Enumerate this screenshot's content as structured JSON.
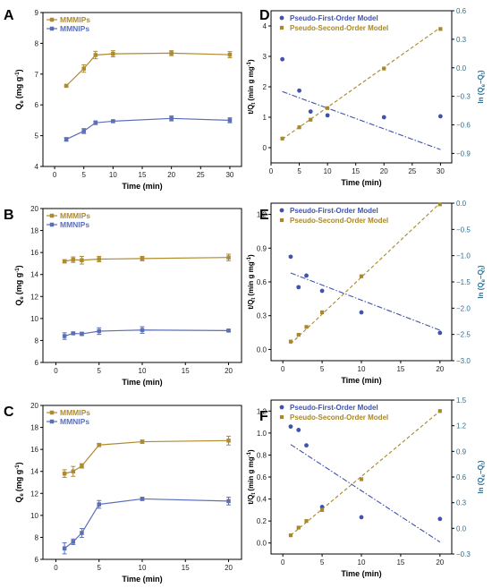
{
  "chart_data": [
    {
      "panel": "A",
      "type": "line",
      "xlabel": "Time (min)",
      "ylabel": "Q",
      "ylabel_sub": "e",
      "ylabel_unit": "(mg g",
      "ylabel_sup": "-1",
      "ylabel_close": ")",
      "xlim": [
        -2,
        32
      ],
      "ylim": [
        4,
        9
      ],
      "xticks": [
        0,
        5,
        10,
        15,
        20,
        25,
        30
      ],
      "yticks": [
        4,
        5,
        6,
        7,
        8,
        9
      ],
      "legend": "top-left",
      "series": [
        {
          "name": "MMMIPs",
          "color": "#b08a2e",
          "marker": "square",
          "x": [
            2,
            5,
            7,
            10,
            20,
            30
          ],
          "y": [
            6.62,
            7.18,
            7.62,
            7.66,
            7.68,
            7.63
          ],
          "err": [
            0.03,
            0.12,
            0.12,
            0.1,
            0.08,
            0.1
          ]
        },
        {
          "name": "MMNIPs",
          "color": "#5b6fb8",
          "marker": "square",
          "x": [
            2,
            5,
            7,
            10,
            20,
            30
          ],
          "y": [
            4.88,
            5.15,
            5.42,
            5.47,
            5.56,
            5.5
          ],
          "err": [
            0.06,
            0.08,
            0.06,
            0.04,
            0.08,
            0.08
          ]
        }
      ]
    },
    {
      "panel": "B",
      "type": "line",
      "xlabel": "Time (min)",
      "ylabel": "Q",
      "ylabel_sub": "e",
      "ylabel_unit": "(mg g",
      "ylabel_sup": "-1",
      "ylabel_close": ")",
      "xlim": [
        -1.5,
        21.5
      ],
      "ylim": [
        6,
        20
      ],
      "xticks": [
        0,
        5,
        10,
        15,
        20
      ],
      "yticks": [
        6,
        8,
        10,
        12,
        14,
        16,
        18,
        20
      ],
      "legend": "top-left",
      "series": [
        {
          "name": "MMMIPs",
          "color": "#b08a2e",
          "marker": "square",
          "x": [
            1,
            2,
            3,
            5,
            10,
            20
          ],
          "y": [
            15.2,
            15.35,
            15.3,
            15.4,
            15.45,
            15.55
          ],
          "err": [
            0.15,
            0.25,
            0.35,
            0.25,
            0.2,
            0.3
          ]
        },
        {
          "name": "MMNIPs",
          "color": "#5b6fb8",
          "marker": "square",
          "x": [
            1,
            2,
            3,
            5,
            10,
            20
          ],
          "y": [
            8.4,
            8.65,
            8.6,
            8.85,
            8.95,
            8.9
          ],
          "err": [
            0.3,
            0.1,
            0.15,
            0.3,
            0.3,
            0.1
          ]
        }
      ]
    },
    {
      "panel": "C",
      "type": "line",
      "xlabel": "Time (min)",
      "ylabel": "Q",
      "ylabel_sub": "e",
      "ylabel_unit": "(mg g",
      "ylabel_sup": "-1",
      "ylabel_close": ")",
      "xlim": [
        -1.5,
        21.5
      ],
      "ylim": [
        6,
        20
      ],
      "xticks": [
        0,
        5,
        10,
        15,
        20
      ],
      "yticks": [
        6,
        8,
        10,
        12,
        14,
        16,
        18,
        20
      ],
      "legend": "top-left",
      "series": [
        {
          "name": "MMMIPs",
          "color": "#b08a2e",
          "marker": "square",
          "x": [
            1,
            2,
            3,
            5,
            10,
            20
          ],
          "y": [
            13.8,
            14.0,
            14.5,
            16.4,
            16.7,
            16.8
          ],
          "err": [
            0.35,
            0.45,
            0.2,
            0.15,
            0.15,
            0.4
          ]
        },
        {
          "name": "MMNIPs",
          "color": "#5b6fb8",
          "marker": "square",
          "x": [
            1,
            2,
            3,
            5,
            10,
            20
          ],
          "y": [
            7.0,
            7.6,
            8.4,
            11.0,
            11.5,
            11.3
          ],
          "err": [
            0.5,
            0.25,
            0.4,
            0.35,
            0.15,
            0.35
          ]
        }
      ]
    },
    {
      "panel": "D",
      "type": "scatter",
      "xlabel": "Time (min)",
      "ylabel_left": "t/Q",
      "ylabel_left_sub": "t",
      "ylabel_left_unit": "(min g mg",
      "ylabel_left_sup": "-1",
      "ylabel_left_close": ")",
      "ylabel_right": "ln (Q",
      "ylabel_right_sub1": "e",
      "ylabel_right_mid": "−Q",
      "ylabel_right_sub2": "t",
      "ylabel_right_close": ")",
      "xlim": [
        0,
        32
      ],
      "ylim_left": [
        -0.5,
        4.5
      ],
      "ylim_right": [
        -1.0,
        0.6
      ],
      "xticks": [
        0,
        5,
        10,
        15,
        20,
        25,
        30
      ],
      "yticks_left": [
        0,
        1,
        2,
        3,
        4
      ],
      "yticks_right": [
        -0.9,
        -0.6,
        -0.3,
        0.0,
        0.3,
        0.6
      ],
      "legend": "top-left",
      "series": [
        {
          "name": "Pseudo-First-Order Model",
          "axis": "right",
          "color": "#3f53ad",
          "marker": "circle",
          "x": [
            2,
            5,
            7,
            10,
            20,
            30
          ],
          "y": [
            0.09,
            -0.24,
            -0.46,
            -0.5,
            -0.52,
            -0.51
          ],
          "fit": [
            [
              2,
              -0.25
            ],
            [
              30,
              -0.86
            ]
          ]
        },
        {
          "name": "Pseudo-Second-Order Model",
          "axis": "left",
          "color": "#a8882a",
          "marker": "square",
          "x": [
            2,
            5,
            7,
            10,
            20,
            30
          ],
          "y": [
            0.3,
            0.67,
            0.92,
            1.3,
            2.6,
            3.9
          ],
          "fit": [
            [
              2,
              0.28
            ],
            [
              30,
              3.95
            ]
          ]
        }
      ]
    },
    {
      "panel": "E",
      "type": "scatter",
      "xlabel": "Time (min)",
      "ylabel_left": "t/Q",
      "ylabel_left_sub": "t",
      "ylabel_left_unit": "(min g mg",
      "ylabel_left_sup": "-1",
      "ylabel_left_close": ")",
      "ylabel_right": "ln (Q",
      "ylabel_right_sub1": "e",
      "ylabel_right_mid": "−Q",
      "ylabel_right_sub2": "t",
      "ylabel_right_close": ")",
      "xlim": [
        -1.5,
        21.5
      ],
      "ylim_left": [
        -0.1,
        1.3
      ],
      "ylim_right": [
        -3.0,
        0.0
      ],
      "xticks": [
        0,
        5,
        10,
        15,
        20
      ],
      "yticks_left": [
        0.0,
        0.3,
        0.6,
        0.9,
        1.2
      ],
      "yticks_right": [
        -3.0,
        -2.5,
        -2.0,
        -1.5,
        -1.0,
        -0.5,
        0.0
      ],
      "legend": "top-left",
      "series": [
        {
          "name": "Pseudo-First-Order Model",
          "axis": "right",
          "color": "#3f53ad",
          "marker": "circle",
          "x": [
            1,
            2,
            3,
            5,
            10,
            20
          ],
          "y": [
            -1.02,
            -1.6,
            -1.38,
            -1.67,
            -2.08,
            -2.47
          ],
          "fit": [
            [
              1,
              -1.33
            ],
            [
              20,
              -2.42
            ]
          ]
        },
        {
          "name": "Pseudo-Second-Order Model",
          "axis": "left",
          "color": "#a8882a",
          "marker": "square",
          "x": [
            1,
            2,
            3,
            5,
            10,
            20
          ],
          "y": [
            0.07,
            0.13,
            0.2,
            0.33,
            0.65,
            1.29
          ],
          "fit": [
            [
              1,
              0.05
            ],
            [
              20,
              1.3
            ]
          ]
        }
      ]
    },
    {
      "panel": "F",
      "type": "scatter",
      "xlabel": "Time (min)",
      "ylabel_left": "t/Q",
      "ylabel_left_sub": "t",
      "ylabel_left_unit": "(min g mg",
      "ylabel_left_sup": "-1",
      "ylabel_left_close": ")",
      "ylabel_right": "ln (Q",
      "ylabel_right_sub1": "e",
      "ylabel_right_mid": "−Q",
      "ylabel_right_sub2": "t",
      "ylabel_right_close": ")",
      "xlim": [
        -1.5,
        21.5
      ],
      "ylim_left": [
        -0.1,
        1.3
      ],
      "ylim_right": [
        -0.3,
        1.5
      ],
      "xticks": [
        0,
        5,
        10,
        15,
        20
      ],
      "yticks_left": [
        0.0,
        0.2,
        0.4,
        0.6,
        0.8,
        1.0,
        1.2
      ],
      "yticks_right": [
        -0.3,
        0.0,
        0.3,
        0.6,
        0.9,
        1.2,
        1.5
      ],
      "legend": "top-left",
      "series": [
        {
          "name": "Pseudo-First-Order Model",
          "axis": "right",
          "color": "#3f53ad",
          "marker": "circle",
          "x": [
            1,
            2,
            3,
            5,
            10,
            20
          ],
          "y": [
            1.19,
            1.15,
            0.97,
            0.25,
            0.13,
            0.11
          ],
          "fit": [
            [
              1,
              0.98
            ],
            [
              20,
              -0.16
            ]
          ]
        },
        {
          "name": "Pseudo-Second-Order Model",
          "axis": "left",
          "color": "#a8882a",
          "marker": "square",
          "x": [
            1,
            2,
            3,
            5,
            10,
            20
          ],
          "y": [
            0.07,
            0.14,
            0.2,
            0.3,
            0.58,
            1.2
          ],
          "fit": [
            [
              1,
              0.07
            ],
            [
              20,
              1.2
            ]
          ]
        }
      ]
    }
  ]
}
